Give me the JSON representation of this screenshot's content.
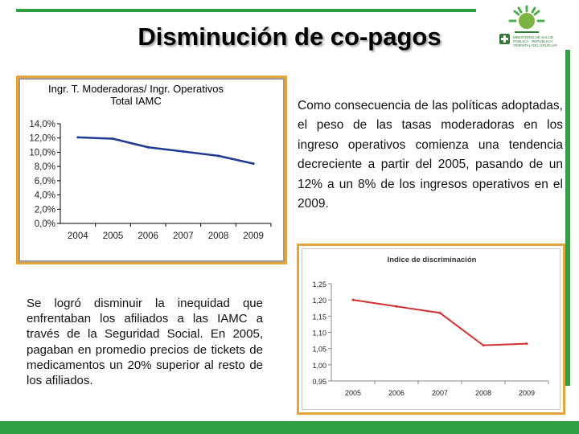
{
  "slide": {
    "title": "Disminución de co-pagos",
    "paragraph_right": "Como consecuencia de las políticas adoptadas, el peso de las tasas moderadoras en los ingreso operativos comienza una tendencia decreciente a partir del 2005, pasando de un 12% a un 8% de los ingresos operativos en el 2009.",
    "paragraph_left": "Se logró disminuir la inequidad que enfrentaban los afiliados a las IAMC a través de la Seguridad Social. En 2005, pagaban en promedio precios de tickets de medicamentos un 20% superior al resto de los afiliados.",
    "logo_text": "MINISTERIO DE SALUD PÚBLICA · REPÚBLICA ORIENTAL DEL URUGUAY"
  },
  "colors": {
    "accent_green": "#2ea043",
    "frame_orange": "#e8a33a",
    "series1_line": "#1f3a93",
    "series2_line": "#d32f2f"
  },
  "chart_data": [
    {
      "type": "line",
      "title": "Ingr. T. Moderadoras/ Ingr. Operativos Total IAMC",
      "x": [
        "2004",
        "2005",
        "2006",
        "2007",
        "2008",
        "2009"
      ],
      "series": [
        {
          "name": "Ingr. T. Moderadoras/ Ingr. Operativos",
          "values": [
            12.1,
            11.9,
            10.7,
            10.1,
            9.5,
            8.4
          ]
        }
      ],
      "yticks": [
        "14,0%",
        "12,0%",
        "10,0%",
        "8,0%",
        "6,0%",
        "4,0%",
        "2,0%",
        "0,0%"
      ],
      "ylim": [
        0,
        14
      ],
      "xlabel": "",
      "ylabel": "",
      "grid": false
    },
    {
      "type": "line",
      "title": "Indice de discriminación",
      "x": [
        "2005",
        "2006",
        "2007",
        "2008",
        "2009"
      ],
      "series": [
        {
          "name": "Indice de discriminación",
          "values": [
            1.2,
            1.18,
            1.16,
            1.06,
            1.065
          ]
        }
      ],
      "yticks": [
        "1,25",
        "1,20",
        "1,15",
        "1,10",
        "1,05",
        "1,00",
        "0,95"
      ],
      "ylim": [
        0.95,
        1.25
      ],
      "xlabel": "",
      "ylabel": "",
      "grid": false
    }
  ]
}
